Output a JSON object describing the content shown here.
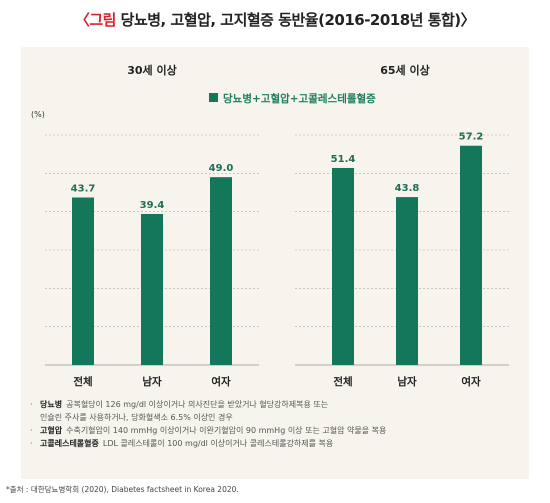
{
  "title": {
    "prefix": "〈그림",
    "text": " 당뇨병, 고혈압, 고지혈증 동반율(2016-2018년 통합)〉"
  },
  "legend": "당뇨병+고혈압+고콜레스테롤혈증",
  "unit": "(%)",
  "colors": {
    "bar": "#13775a",
    "grid": "#aaaaaa",
    "panel": "#f6f4ed",
    "accent": "#d8202f"
  },
  "chart_data": [
    {
      "type": "bar",
      "title": "30세 이상",
      "categories": [
        "전체",
        "남자",
        "여자"
      ],
      "values": [
        43.7,
        39.4,
        49.0
      ],
      "value_labels": [
        "43.7",
        "39.4",
        "49.0"
      ],
      "ylabel": "(%)",
      "ylim": [
        0,
        60
      ],
      "grid": true
    },
    {
      "type": "bar",
      "title": "65세 이상",
      "categories": [
        "전체",
        "남자",
        "여자"
      ],
      "values": [
        51.4,
        43.8,
        57.2
      ],
      "value_labels": [
        "51.4",
        "43.8",
        "57.2"
      ],
      "ylim": [
        0,
        60
      ],
      "grid": true
    }
  ],
  "notes": [
    {
      "term": "당뇨병",
      "text": "공복혈당이 126 mg/dl 이상이거나 의사진단을 받았거나 혈당강하제복용 또는",
      "cont": "인슐린 주사를 사용하거나, 당화혈색소 6.5% 이상인 경우"
    },
    {
      "term": "고혈압",
      "text": "수축기혈압이 140 mmHg 이상이거나 이완기혈압이 90 mmHg 이상 또는 고혈압 약물을 복용",
      "cont": ""
    },
    {
      "term": "고콜레스테롤혈증",
      "text": "LDL 콜레스테롤이 100 mg/dl 이상이거나 콜레스테롤강하제를 복용",
      "cont": ""
    }
  ],
  "source": "*출처 : 대한당뇨병학회 (2020), Diabetes factsheet in Korea 2020."
}
